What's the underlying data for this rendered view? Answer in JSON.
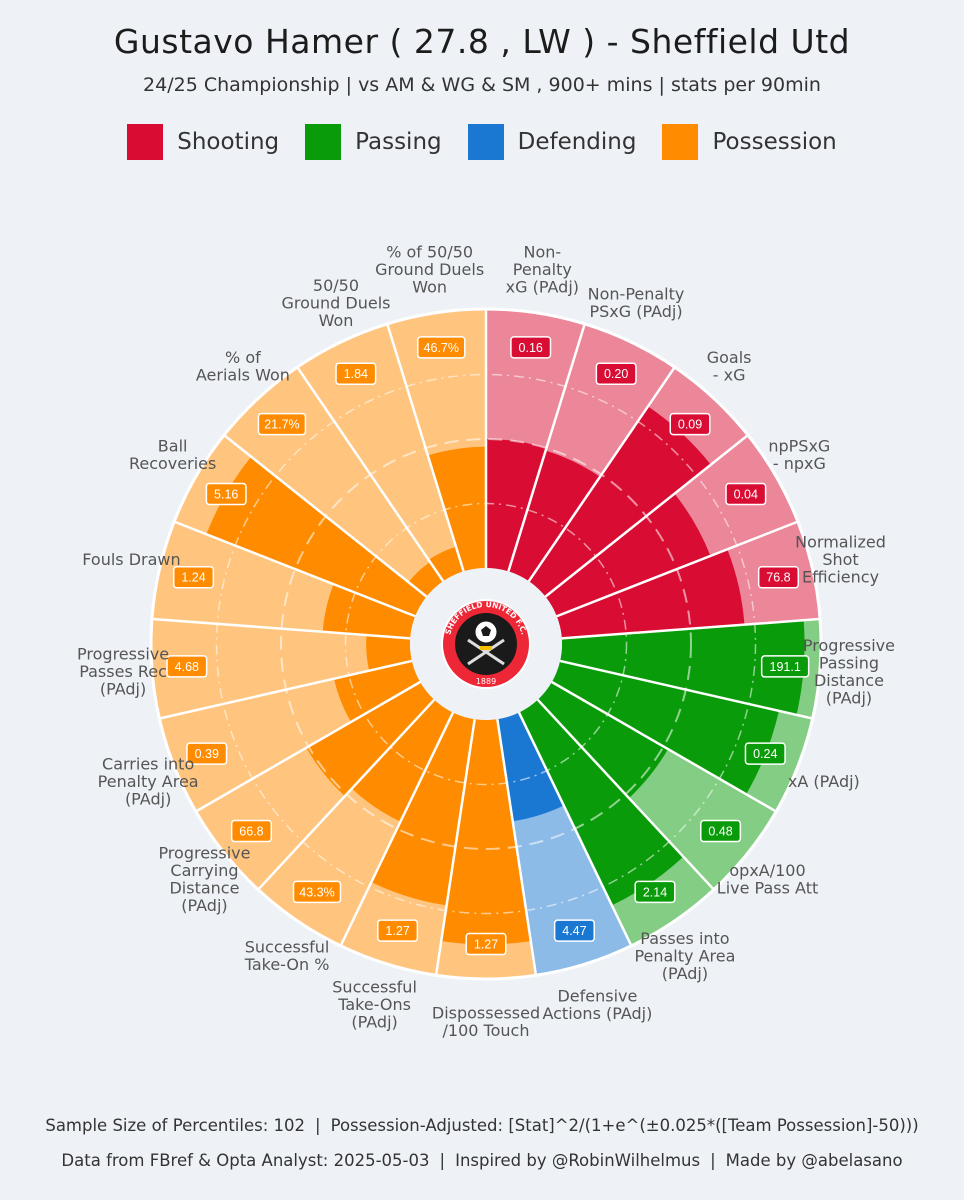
{
  "title": "Gustavo Hamer  ( 27.8 , LW ) - Sheffield Utd",
  "subtitle": "24/25 Championship | vs AM & WG & SM , 900+ mins | stats per 90min",
  "legend": [
    {
      "label": "Shooting",
      "color": "#d90d33"
    },
    {
      "label": "Passing",
      "color": "#0a9b0a"
    },
    {
      "label": "Defending",
      "color": "#1b78d2"
    },
    {
      "label": "Possession",
      "color": "#ff8c00"
    }
  ],
  "logo": {
    "top_text": "SHEFFIELD UNITED F.C.",
    "year": "1889",
    "icon": "sheffield-united-crest-icon"
  },
  "chart_data": {
    "type": "polar-bar",
    "scale": "percentile 0-100",
    "background_note": "",
    "metrics": [
      {
        "label": "Non-\nPenalty\nxG (PAdj)",
        "value": "0.16",
        "percentile": 50,
        "category": "Shooting"
      },
      {
        "label": "Non-Penalty\nPSxG (PAdj)",
        "value": "0.20",
        "percentile": 49,
        "category": "Shooting"
      },
      {
        "label": "Goals\n- xG",
        "value": "0.09",
        "percentile": 82,
        "category": "Shooting"
      },
      {
        "label": "npPSxG\n- npxG",
        "value": "0.04",
        "percentile": 64,
        "category": "Shooting"
      },
      {
        "label": "Normalized\nShot\nEfficiency",
        "value": "76.8",
        "percentile": 71,
        "category": "Shooting"
      },
      {
        "label": "Progressive\nPassing\nDistance\n(PAdj)",
        "value": "191.1",
        "percentile": 94,
        "category": "Passing"
      },
      {
        "label": "xA (PAdj)",
        "value": "0.24",
        "percentile": 87,
        "category": "Passing"
      },
      {
        "label": "opxA/100\nLive Pass Att",
        "value": "0.48",
        "percentile": 52,
        "category": "Passing"
      },
      {
        "label": "Passes into\nPenalty Area\n(PAdj)",
        "value": "2.14",
        "percentile": 83,
        "category": "Passing"
      },
      {
        "label": "Defensive\nActions (PAdj)",
        "value": "4.47",
        "percentile": 40,
        "category": "Defending"
      },
      {
        "label": "Dispossessed\n/100 Touch",
        "value": "1.27",
        "percentile": 87,
        "category": "Possession"
      },
      {
        "label": "Successful\nTake-Ons\n(PAdj)",
        "value": "1.27",
        "percentile": 73,
        "category": "Possession"
      },
      {
        "label": "Successful\nTake-On %",
        "value": "43.3%",
        "percentile": 47,
        "category": "Possession"
      },
      {
        "label": "Progressive\nCarrying\nDistance\n(PAdj)",
        "value": "66.8",
        "percentile": 51,
        "category": "Possession"
      },
      {
        "label": "Carries into\nPenalty Area\n(PAdj)",
        "value": "0.39",
        "percentile": 31,
        "category": "Possession"
      },
      {
        "label": "Progressive\nPasses Rec\n(PAdj)",
        "value": "4.68",
        "percentile": 17,
        "category": "Possession"
      },
      {
        "label": "Fouls Drawn",
        "value": "1.24",
        "percentile": 34,
        "category": "Possession"
      },
      {
        "label": "Ball\nRecoveries",
        "value": "5.16",
        "percentile": 87,
        "category": "Possession"
      },
      {
        "label": "% of\nAerials Won",
        "value": "21.7%",
        "percentile": 9,
        "category": "Possession"
      },
      {
        "label": "50/50\nGround Duels\nWon",
        "value": "1.84",
        "percentile": 10,
        "category": "Possession"
      },
      {
        "label": "% of 50/50\nGround Duels\nWon",
        "value": "46.7%",
        "percentile": 47,
        "category": "Possession"
      }
    ]
  },
  "footer": {
    "line1_a": "Sample Size of Percentiles:  102",
    "line1_b": "Possession-Adjusted: [Stat]^2/(1+e^(±0.025*([Team Possession]-50)))",
    "line2_a": "Data from FBref & Opta Analyst: 2025-05-03",
    "line2_b": "Inspired by @RobinWilhelmus",
    "line2_c": "Made by @abelasano"
  }
}
